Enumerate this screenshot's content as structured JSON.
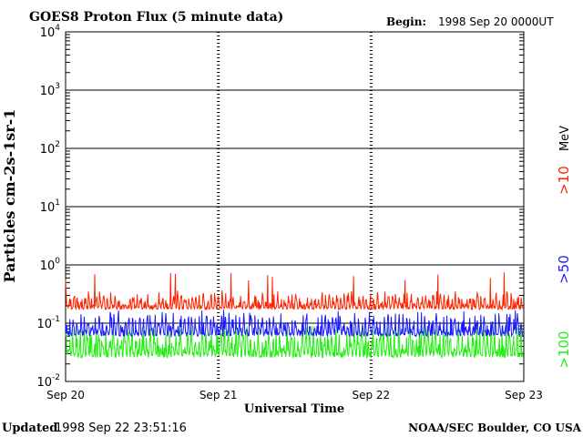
{
  "chart_data": {
    "type": "line",
    "title": "GOES8 Proton Flux (5 minute data)",
    "begin_label": "Begin:",
    "begin_value": "1998 Sep 20 0000UT",
    "ylabel": "Particles cm-2s-1sr-1",
    "xlabel": "Universal Time",
    "y_scale": "log",
    "ylim": [
      0.01,
      10000
    ],
    "y_ticks": [
      {
        "value": 0.01,
        "base": "10",
        "exp": "-2"
      },
      {
        "value": 0.1,
        "base": "10",
        "exp": "-1"
      },
      {
        "value": 1,
        "base": "10",
        "exp": "0"
      },
      {
        "value": 10,
        "base": "10",
        "exp": "1"
      },
      {
        "value": 100,
        "base": "10",
        "exp": "2"
      },
      {
        "value": 1000,
        "base": "10",
        "exp": "3"
      },
      {
        "value": 10000,
        "base": "10",
        "exp": "4"
      }
    ],
    "x_ticks": [
      "Sep 20",
      "Sep 21",
      "Sep 22",
      "Sep 23"
    ],
    "xlim": [
      "1998-09-20",
      "1998-09-23"
    ],
    "grid": true,
    "legend_position": "right",
    "units_label": "MeV",
    "series": [
      {
        "name": ">10",
        "color": "#ff2200",
        "typical_range": [
          0.15,
          0.3
        ],
        "peak": 0.75
      },
      {
        "name": ">50",
        "color": "#1a1aff",
        "typical_range": [
          0.05,
          0.12
        ],
        "peak": 0.17
      },
      {
        "name": ">100",
        "color": "#22ee11",
        "typical_range": [
          0.02,
          0.07
        ],
        "peak": 0.09
      }
    ]
  },
  "footer": {
    "updated_label": "Updated",
    "updated_value": "1998 Sep 22 23:51:16",
    "credit": "NOAA/SEC Boulder, CO USA"
  }
}
